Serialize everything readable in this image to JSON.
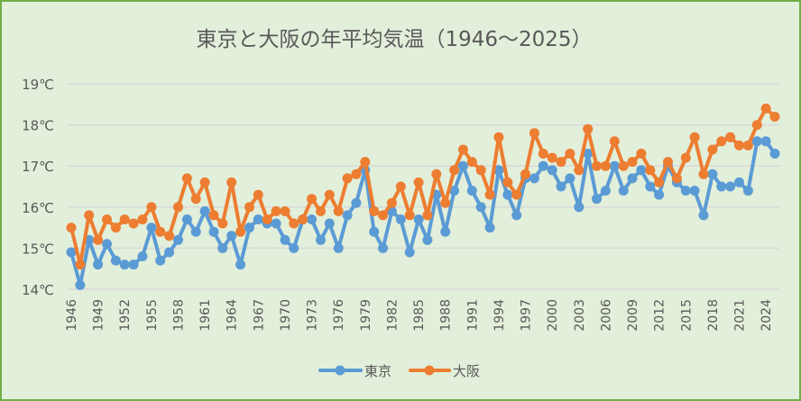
{
  "chart_data": {
    "type": "line",
    "title": "東京と大阪の年平均気温（1946～2025）",
    "xlabel": "",
    "ylabel": "",
    "ylim": [
      14,
      19
    ],
    "y_ticks": [
      "14℃",
      "15℃",
      "16℃",
      "17℃",
      "18℃",
      "19℃"
    ],
    "y_tick_values": [
      14,
      15,
      16,
      17,
      18,
      19
    ],
    "x": [
      1946,
      1947,
      1948,
      1949,
      1950,
      1951,
      1952,
      1953,
      1954,
      1955,
      1956,
      1957,
      1958,
      1959,
      1960,
      1961,
      1962,
      1963,
      1964,
      1965,
      1966,
      1967,
      1968,
      1969,
      1970,
      1971,
      1972,
      1973,
      1974,
      1975,
      1976,
      1977,
      1978,
      1979,
      1980,
      1981,
      1982,
      1983,
      1984,
      1985,
      1986,
      1987,
      1988,
      1989,
      1990,
      1991,
      1992,
      1993,
      1994,
      1995,
      1996,
      1997,
      1998,
      1999,
      2000,
      2001,
      2002,
      2003,
      2004,
      2005,
      2006,
      2007,
      2008,
      2009,
      2010,
      2011,
      2012,
      2013,
      2014,
      2015,
      2016,
      2017,
      2018,
      2019,
      2020,
      2021,
      2022,
      2023,
      2024,
      2025
    ],
    "x_tick_labels": [
      "1946",
      "1949",
      "1952",
      "1955",
      "1958",
      "1961",
      "1964",
      "1967",
      "1970",
      "1973",
      "1976",
      "1979",
      "1982",
      "1985",
      "1988",
      "1991",
      "1994",
      "1997",
      "2000",
      "2003",
      "2006",
      "2009",
      "2012",
      "2015",
      "2018",
      "2021",
      "2024"
    ],
    "grid": true,
    "legend_position": "bottom",
    "series": [
      {
        "name": "東京",
        "color": "#5B9BD5",
        "values": [
          14.9,
          14.1,
          15.2,
          14.6,
          15.1,
          14.7,
          14.6,
          14.6,
          14.8,
          15.5,
          14.7,
          14.9,
          15.2,
          15.7,
          15.4,
          15.9,
          15.4,
          15.0,
          15.3,
          14.6,
          15.5,
          15.7,
          15.6,
          15.6,
          15.2,
          15.0,
          15.7,
          15.7,
          15.2,
          15.6,
          15.0,
          15.8,
          16.1,
          16.9,
          15.4,
          15.0,
          15.9,
          15.7,
          14.9,
          15.7,
          15.2,
          16.3,
          15.4,
          16.4,
          17.0,
          16.4,
          16.0,
          15.5,
          16.9,
          16.3,
          15.8,
          16.7,
          16.7,
          17.0,
          16.9,
          16.5,
          16.7,
          16.0,
          17.3,
          16.2,
          16.4,
          17.0,
          16.4,
          16.7,
          16.9,
          16.5,
          16.3,
          17.0,
          16.6,
          16.4,
          16.4,
          15.8,
          16.8,
          16.5,
          16.5,
          16.6,
          16.4,
          17.6,
          17.6,
          17.3
        ]
      },
      {
        "name": "大阪",
        "color": "#ED7D31",
        "values": [
          15.5,
          14.6,
          15.8,
          15.2,
          15.7,
          15.5,
          15.7,
          15.6,
          15.7,
          16.0,
          15.4,
          15.3,
          16.0,
          16.7,
          16.2,
          16.6,
          15.8,
          15.6,
          16.6,
          15.4,
          16.0,
          16.3,
          15.7,
          15.9,
          15.9,
          15.6,
          15.7,
          16.2,
          15.9,
          16.3,
          15.9,
          16.7,
          16.8,
          17.1,
          15.9,
          15.8,
          16.1,
          16.5,
          15.8,
          16.6,
          15.8,
          16.8,
          16.1,
          16.9,
          17.4,
          17.1,
          16.9,
          16.3,
          17.7,
          16.6,
          16.3,
          16.8,
          17.8,
          17.3,
          17.2,
          17.1,
          17.3,
          16.9,
          17.9,
          17.0,
          17.0,
          17.6,
          17.0,
          17.1,
          17.3,
          16.9,
          16.6,
          17.1,
          16.7,
          17.2,
          17.7,
          16.8,
          17.4,
          17.6,
          17.7,
          17.5,
          17.5,
          18.0,
          18.4,
          18.2
        ]
      }
    ]
  }
}
